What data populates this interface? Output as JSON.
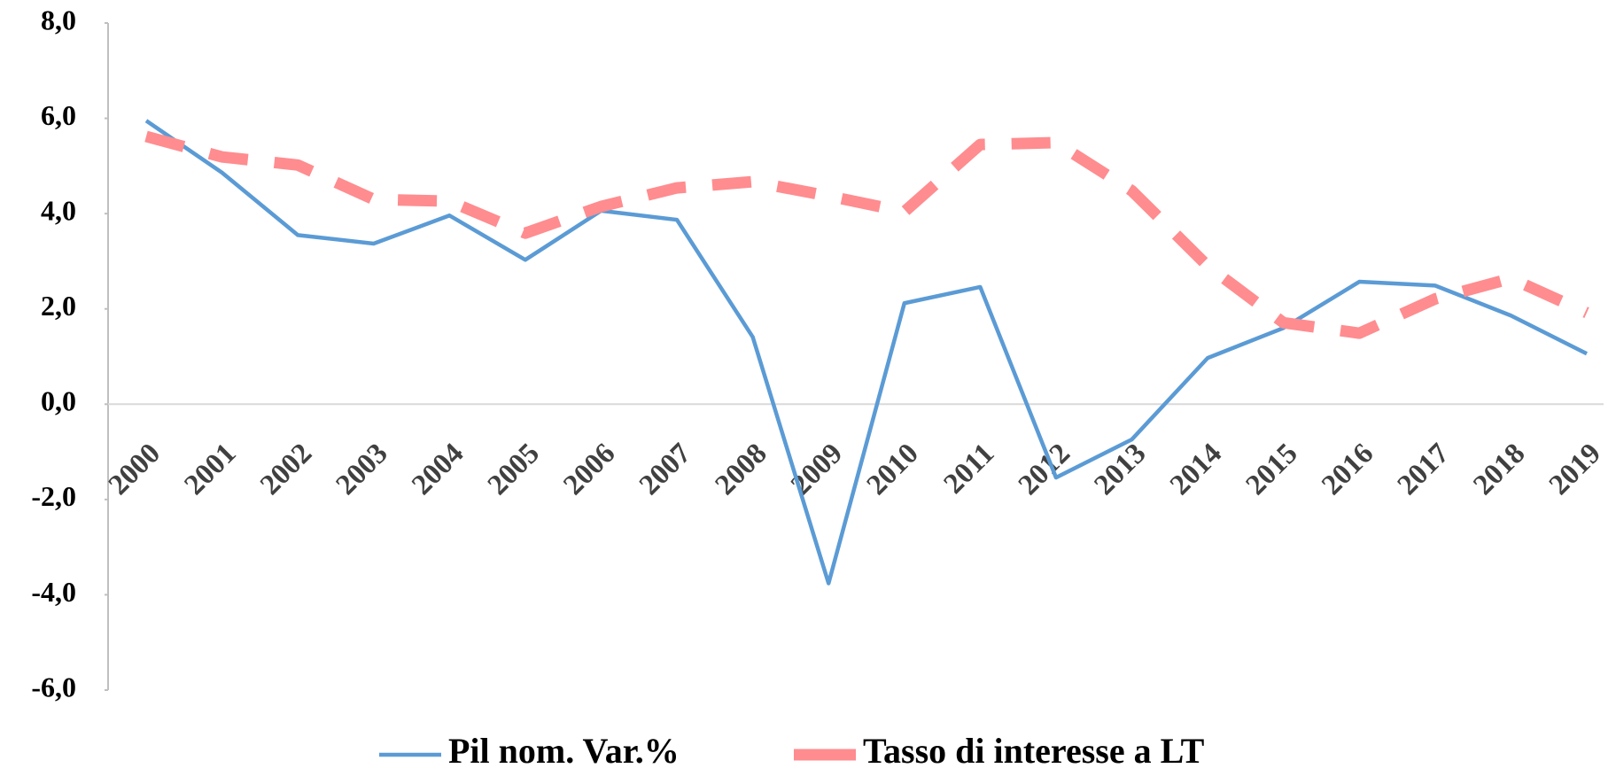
{
  "chart_data": {
    "type": "line",
    "categories": [
      "2000",
      "2001",
      "2002",
      "2003",
      "2004",
      "2005",
      "2006",
      "2007",
      "2008",
      "2009",
      "2010",
      "2011",
      "2012",
      "2013",
      "2014",
      "2015",
      "2016",
      "2017",
      "2018",
      "2019"
    ],
    "series": [
      {
        "name": "Pil nom. Var.%",
        "color": "#5b9bd5",
        "dashed": false,
        "values": [
          5.95,
          4.86,
          3.55,
          3.37,
          3.96,
          3.03,
          4.06,
          3.87,
          1.41,
          -3.76,
          2.12,
          2.46,
          -1.54,
          -0.74,
          0.97,
          1.6,
          2.57,
          2.49,
          1.86,
          1.06
        ]
      },
      {
        "name": "Tasso di interesse a LT",
        "color": "#ff8c8f",
        "dashed": true,
        "values": [
          5.62,
          5.19,
          5.02,
          4.3,
          4.26,
          3.59,
          4.15,
          4.54,
          4.67,
          4.37,
          4.04,
          5.45,
          5.49,
          4.48,
          2.9,
          1.71,
          1.49,
          2.21,
          2.64,
          1.92
        ]
      }
    ],
    "ylim": [
      -6,
      8
    ],
    "yticks": [
      {
        "value": -6,
        "label": "-6,0"
      },
      {
        "value": -4,
        "label": "-4,0"
      },
      {
        "value": -2,
        "label": "-2,0"
      },
      {
        "value": 0,
        "label": "0,0"
      },
      {
        "value": 2,
        "label": "2,0"
      },
      {
        "value": 4,
        "label": "4,0"
      },
      {
        "value": 6,
        "label": "6,0"
      },
      {
        "value": 8,
        "label": "8,0"
      }
    ],
    "legend": "bottom"
  }
}
